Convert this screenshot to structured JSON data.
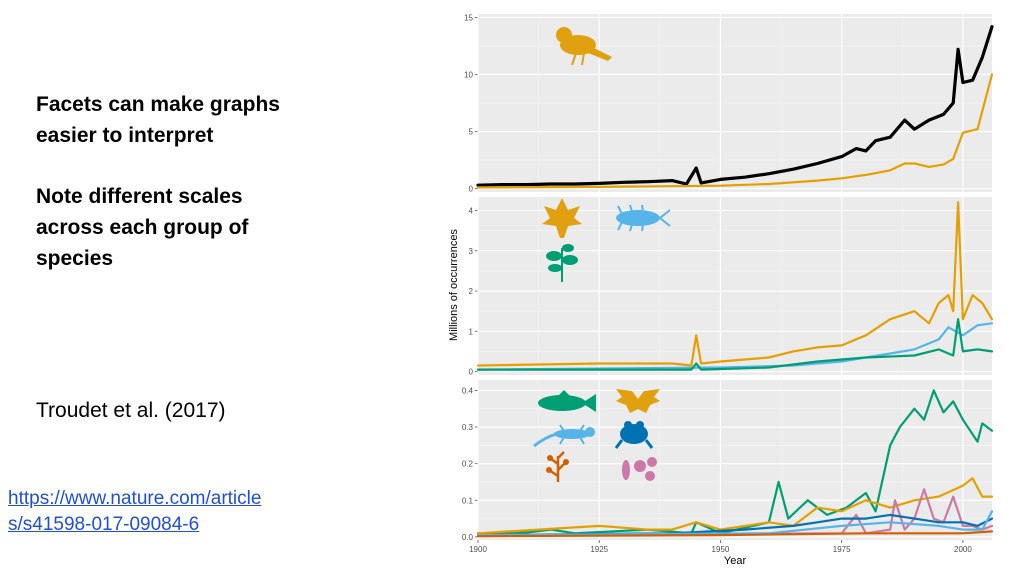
{
  "slide": {
    "heading_lines": [
      "Facets can make graphs",
      "easier to interpret",
      "Note different scales",
      "across each group of",
      "species"
    ],
    "citation": "Troudet et al. (2017)",
    "link_line1": "https://www.nature.com/article",
    "link_line2": "s/s41598-017-09084-6"
  },
  "chart_data": {
    "type": "line",
    "xlabel": "Year",
    "ylabel": "Millions of occurrences",
    "x_ticks": [
      1900,
      1925,
      1950,
      1975,
      2000
    ],
    "xlim": [
      1900,
      2006
    ],
    "grid": true,
    "panels": [
      {
        "ylim": [
          0,
          15
        ],
        "y_ticks": [
          0,
          5,
          10,
          15
        ],
        "icons": [
          "bird-icon"
        ],
        "series": [
          {
            "color": "#000000",
            "points": [
              [
                1900,
                0.3
              ],
              [
                1905,
                0.35
              ],
              [
                1910,
                0.35
              ],
              [
                1915,
                0.4
              ],
              [
                1920,
                0.4
              ],
              [
                1925,
                0.45
              ],
              [
                1930,
                0.55
              ],
              [
                1935,
                0.6
              ],
              [
                1940,
                0.7
              ],
              [
                1943,
                0.4
              ],
              [
                1945,
                1.8
              ],
              [
                1946,
                0.5
              ],
              [
                1950,
                0.8
              ],
              [
                1955,
                1.0
              ],
              [
                1960,
                1.3
              ],
              [
                1965,
                1.7
              ],
              [
                1970,
                2.2
              ],
              [
                1975,
                2.8
              ],
              [
                1978,
                3.5
              ],
              [
                1980,
                3.3
              ],
              [
                1982,
                4.2
              ],
              [
                1985,
                4.5
              ],
              [
                1988,
                6.0
              ],
              [
                1990,
                5.2
              ],
              [
                1993,
                6.0
              ],
              [
                1996,
                6.5
              ],
              [
                1998,
                7.5
              ],
              [
                1999,
                12.2
              ],
              [
                2000,
                9.3
              ],
              [
                2002,
                9.5
              ],
              [
                2004,
                11.5
              ],
              [
                2006,
                14.2
              ]
            ]
          },
          {
            "color": "#e69f00",
            "points": [
              [
                1900,
                0.1
              ],
              [
                1925,
                0.15
              ],
              [
                1950,
                0.25
              ],
              [
                1960,
                0.4
              ],
              [
                1970,
                0.7
              ],
              [
                1975,
                0.9
              ],
              [
                1980,
                1.2
              ],
              [
                1985,
                1.6
              ],
              [
                1988,
                2.2
              ],
              [
                1990,
                2.2
              ],
              [
                1993,
                1.9
              ],
              [
                1996,
                2.1
              ],
              [
                1998,
                2.6
              ],
              [
                2000,
                4.9
              ],
              [
                2003,
                5.2
              ],
              [
                2006,
                10.0
              ]
            ]
          }
        ]
      },
      {
        "ylim": [
          0,
          4.25
        ],
        "y_ticks": [
          0,
          1,
          2,
          3,
          4
        ],
        "icons": [
          "leaf-icon",
          "insect-icon",
          "plant-icon"
        ],
        "series": [
          {
            "color": "#e69f00",
            "points": [
              [
                1900,
                0.15
              ],
              [
                1925,
                0.2
              ],
              [
                1940,
                0.2
              ],
              [
                1944,
                0.15
              ],
              [
                1945,
                0.9
              ],
              [
                1946,
                0.2
              ],
              [
                1950,
                0.25
              ],
              [
                1960,
                0.35
              ],
              [
                1965,
                0.5
              ],
              [
                1970,
                0.6
              ],
              [
                1975,
                0.65
              ],
              [
                1980,
                0.9
              ],
              [
                1985,
                1.3
              ],
              [
                1990,
                1.5
              ],
              [
                1993,
                1.2
              ],
              [
                1995,
                1.7
              ],
              [
                1997,
                1.9
              ],
              [
                1998,
                1.5
              ],
              [
                1999,
                4.2
              ],
              [
                2000,
                1.3
              ],
              [
                2002,
                1.9
              ],
              [
                2004,
                1.7
              ],
              [
                2006,
                1.3
              ]
            ]
          },
          {
            "color": "#56b4e9",
            "points": [
              [
                1900,
                0.05
              ],
              [
                1950,
                0.1
              ],
              [
                1965,
                0.15
              ],
              [
                1975,
                0.25
              ],
              [
                1985,
                0.45
              ],
              [
                1990,
                0.55
              ],
              [
                1995,
                0.8
              ],
              [
                1997,
                1.1
              ],
              [
                2000,
                0.9
              ],
              [
                2003,
                1.15
              ],
              [
                2006,
                1.2
              ]
            ]
          },
          {
            "color": "#009e73",
            "points": [
              [
                1900,
                0.05
              ],
              [
                1944,
                0.05
              ],
              [
                1945,
                0.2
              ],
              [
                1946,
                0.05
              ],
              [
                1960,
                0.1
              ],
              [
                1970,
                0.25
              ],
              [
                1980,
                0.35
              ],
              [
                1990,
                0.4
              ],
              [
                1995,
                0.55
              ],
              [
                1998,
                0.4
              ],
              [
                1999,
                1.3
              ],
              [
                2000,
                0.5
              ],
              [
                2003,
                0.55
              ],
              [
                2006,
                0.5
              ]
            ]
          }
        ]
      },
      {
        "ylim": [
          0,
          0.42
        ],
        "y_ticks": [
          0.0,
          0.1,
          0.2,
          0.3,
          0.4
        ],
        "icons": [
          "fish-icon",
          "bat-icon",
          "lizard-icon",
          "frog-icon",
          "seaweed-icon",
          "microbe-icon"
        ],
        "series": [
          {
            "color": "#009e73",
            "points": [
              [
                1900,
                0.01
              ],
              [
                1910,
                0.012
              ],
              [
                1915,
                0.02
              ],
              [
                1920,
                0.01
              ],
              [
                1935,
                0.02
              ],
              [
                1944,
                0.01
              ],
              [
                1945,
                0.04
              ],
              [
                1950,
                0.01
              ],
              [
                1960,
                0.04
              ],
              [
                1962,
                0.15
              ],
              [
                1964,
                0.05
              ],
              [
                1968,
                0.1
              ],
              [
                1972,
                0.06
              ],
              [
                1976,
                0.08
              ],
              [
                1978,
                0.1
              ],
              [
                1980,
                0.12
              ],
              [
                1982,
                0.07
              ],
              [
                1985,
                0.25
              ],
              [
                1987,
                0.3
              ],
              [
                1990,
                0.35
              ],
              [
                1992,
                0.32
              ],
              [
                1994,
                0.4
              ],
              [
                1996,
                0.34
              ],
              [
                1998,
                0.37
              ],
              [
                2000,
                0.32
              ],
              [
                2003,
                0.26
              ],
              [
                2004,
                0.31
              ],
              [
                2006,
                0.29
              ]
            ]
          },
          {
            "color": "#e69f00",
            "points": [
              [
                1900,
                0.01
              ],
              [
                1925,
                0.03
              ],
              [
                1935,
                0.02
              ],
              [
                1940,
                0.02
              ],
              [
                1945,
                0.04
              ],
              [
                1950,
                0.02
              ],
              [
                1960,
                0.04
              ],
              [
                1965,
                0.03
              ],
              [
                1970,
                0.08
              ],
              [
                1975,
                0.07
              ],
              [
                1980,
                0.1
              ],
              [
                1985,
                0.08
              ],
              [
                1990,
                0.1
              ],
              [
                1995,
                0.11
              ],
              [
                2000,
                0.14
              ],
              [
                2002,
                0.16
              ],
              [
                2004,
                0.11
              ],
              [
                2006,
                0.11
              ]
            ]
          },
          {
            "color": "#cc79a7",
            "points": [
              [
                1900,
                0.005
              ],
              [
                1975,
                0.01
              ],
              [
                1978,
                0.06
              ],
              [
                1980,
                0.01
              ],
              [
                1985,
                0.02
              ],
              [
                1986,
                0.1
              ],
              [
                1988,
                0.02
              ],
              [
                1990,
                0.05
              ],
              [
                1992,
                0.13
              ],
              [
                1994,
                0.05
              ],
              [
                1996,
                0.04
              ],
              [
                1998,
                0.11
              ],
              [
                2000,
                0.03
              ],
              [
                2002,
                0.03
              ],
              [
                2004,
                0.02
              ],
              [
                2006,
                0.03
              ]
            ]
          },
          {
            "color": "#0072b2",
            "points": [
              [
                1900,
                0.005
              ],
              [
                1940,
                0.01
              ],
              [
                1955,
                0.02
              ],
              [
                1965,
                0.03
              ],
              [
                1970,
                0.04
              ],
              [
                1975,
                0.05
              ],
              [
                1980,
                0.05
              ],
              [
                1985,
                0.06
              ],
              [
                1990,
                0.05
              ],
              [
                1995,
                0.04
              ],
              [
                2000,
                0.04
              ],
              [
                2003,
                0.03
              ],
              [
                2006,
                0.05
              ]
            ]
          },
          {
            "color": "#56b4e9",
            "points": [
              [
                1900,
                0.005
              ],
              [
                1960,
                0.01
              ],
              [
                1975,
                0.03
              ],
              [
                1985,
                0.04
              ],
              [
                1995,
                0.03
              ],
              [
                2000,
                0.02
              ],
              [
                2004,
                0.02
              ],
              [
                2006,
                0.07
              ]
            ]
          },
          {
            "color": "#d55e00",
            "points": [
              [
                1900,
                0.002
              ],
              [
                1950,
                0.005
              ],
              [
                1980,
                0.01
              ],
              [
                2000,
                0.01
              ],
              [
                2006,
                0.015
              ]
            ]
          }
        ]
      }
    ]
  }
}
